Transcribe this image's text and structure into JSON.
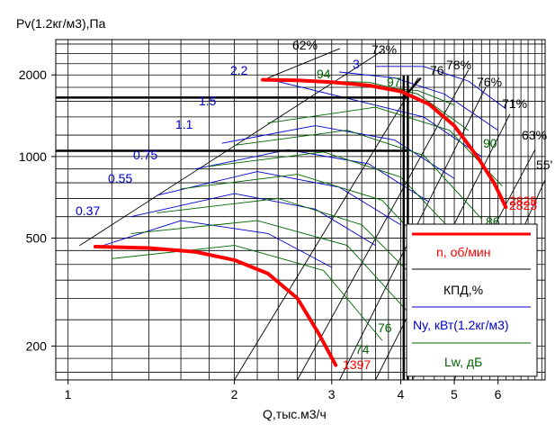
{
  "chart_data": {
    "type": "line",
    "ylabel": "Pv(1.2кг/м3),Па",
    "xlabel": "Q,тыс.м3/ч",
    "x_scale": "log",
    "y_scale": "log",
    "xlim": [
      0.95,
      7.3
    ],
    "ylim": [
      150,
      2700
    ],
    "x_ticks": [
      1,
      2,
      3,
      4,
      5,
      6
    ],
    "y_ticks": [
      200,
      500,
      1000,
      2000
    ],
    "grid": true,
    "legend_position": "bottom-right",
    "legend": [
      {
        "label": "n, об/мин",
        "color": "#ff0000"
      },
      {
        "label": "КПД,%",
        "color": "#000000"
      },
      {
        "label": "Ny, кВт(1.2кг/м3)",
        "color": "#0000cc"
      },
      {
        "label": "Lw, дБ",
        "color": "#006600"
      }
    ],
    "colors": {
      "speed": "#ff0000",
      "efficiency": "#000000",
      "power": "#0000cc",
      "noise": "#006600",
      "operating_point": "#000000"
    },
    "speed_curve": {
      "name": "n, об/мин",
      "upper_branch": {
        "x": [
          2.25,
          2.6,
          3.0,
          3.5,
          4.0,
          4.5,
          5.0,
          5.5,
          5.9,
          6.2
        ],
        "y": [
          1920,
          1910,
          1880,
          1830,
          1740,
          1560,
          1300,
          1000,
          800,
          650
        ]
      },
      "lower_branch": {
        "x": [
          1.12,
          1.4,
          1.7,
          2.0,
          2.3,
          2.6,
          2.85,
          3.05
        ],
        "y": [
          465,
          460,
          445,
          415,
          370,
          300,
          220,
          170
        ]
      },
      "labels": [
        {
          "text": "1397",
          "x": 3.1,
          "y": 158
        },
        {
          "text": "2825",
          "x": 6.5,
          "y": 620
        },
        {
          "text": "2825",
          "x": 6.45,
          "y": 645
        }
      ]
    },
    "efficiency_rays": [
      {
        "label": "62%",
        "x": [
          2.3,
          3.1
        ],
        "y": [
          1950,
          2500
        ]
      },
      {
        "label": "73%",
        "x": [
          1.05,
          3.7
        ],
        "y": [
          470,
          2450
        ]
      },
      {
        "label": "76",
        "x": [
          2.0,
          4.3
        ],
        "y": [
          150,
          1950
        ]
      },
      {
        "label": "78%",
        "x": [
          2.6,
          5.3
        ],
        "y": [
          150,
          2080
        ]
      },
      {
        "label": "76%",
        "x": [
          3.1,
          5.7
        ],
        "y": [
          150,
          1800
        ]
      },
      {
        "label": "71%",
        "x": [
          3.6,
          6.3
        ],
        "y": [
          150,
          1430
        ]
      },
      {
        "label": "63%",
        "x": [
          4.2,
          7.0
        ],
        "y": [
          150,
          1060
        ]
      },
      {
        "label": "55'",
        "x": [
          5.0,
          7.3
        ],
        "y": [
          150,
          820
        ]
      }
    ],
    "power_curves": [
      {
        "label": "0.37",
        "x": [
          1.12,
          1.6,
          2.3,
          3.0
        ],
        "y": [
          460,
          580,
          520,
          390
        ]
      },
      {
        "label": "0.55",
        "x": [
          1.3,
          2.0,
          2.8,
          3.6
        ],
        "y": [
          600,
          730,
          640,
          470
        ]
      },
      {
        "label": "0.75",
        "x": [
          1.45,
          2.2,
          3.1,
          4.0
        ],
        "y": [
          720,
          880,
          770,
          560
        ]
      },
      {
        "label": "1.1",
        "x": [
          1.7,
          2.5,
          3.5,
          4.5
        ],
        "y": [
          900,
          1060,
          940,
          680
        ]
      },
      {
        "label": "1.5",
        "x": [
          1.9,
          2.8,
          3.9,
          5.0
        ],
        "y": [
          1120,
          1300,
          1150,
          830
        ]
      },
      {
        "label": "2.2",
        "x": [
          2.3,
          3.2,
          4.4,
          5.6
        ],
        "y": [
          1930,
          1640,
          1400,
          1000
        ]
      },
      {
        "label": "3",
        "x": [
          3.1,
          3.9,
          4.8,
          6.0
        ],
        "y": [
          2050,
          1950,
          1700,
          1250
        ]
      },
      {
        "label": "",
        "x": [
          3.6,
          4.4,
          5.3,
          6.2
        ],
        "y": [
          2150,
          2150,
          1900,
          1500
        ]
      }
    ],
    "noise_curves": [
      {
        "label": "74",
        "x": [
          1.2,
          2.0,
          2.9,
          3.7
        ],
        "y": [
          420,
          470,
          380,
          210
        ]
      },
      {
        "label": "76",
        "x": [
          1.3,
          2.2,
          3.2,
          4.1
        ],
        "y": [
          520,
          580,
          470,
          270
        ]
      },
      {
        "label": "",
        "x": [
          1.45,
          2.4,
          3.4,
          4.4
        ],
        "y": [
          620,
          700,
          560,
          330
        ]
      },
      {
        "label": "",
        "x": [
          1.6,
          2.6,
          3.7,
          4.7
        ],
        "y": [
          760,
          860,
          690,
          410
        ]
      },
      {
        "label": "",
        "x": [
          1.8,
          2.9,
          4.0,
          5.1
        ],
        "y": [
          920,
          1040,
          840,
          500
        ]
      },
      {
        "label": "86",
        "x": [
          2.0,
          3.2,
          4.4,
          5.6
        ],
        "y": [
          1100,
          1250,
          1010,
          590
        ]
      },
      {
        "label": "90",
        "x": [
          2.3,
          3.6,
          4.9,
          6.1
        ],
        "y": [
          1330,
          1520,
          1250,
          780
        ]
      },
      {
        "label": "94",
        "x": [
          2.7,
          3.5,
          4.3,
          5.3
        ],
        "y": [
          1900,
          1880,
          1700,
          1250
        ]
      },
      {
        "label": "97",
        "x": [
          3.7,
          4.3,
          5.0
        ],
        "y": [
          1800,
          1750,
          1550
        ]
      }
    ],
    "operating_lines": {
      "horizontal": [
        {
          "y": 1650,
          "x_end": 4.1
        },
        {
          "y": 1050,
          "x_end": 4.1
        }
      ],
      "vertical": [
        {
          "x": 4.05
        },
        {
          "x": 4.12
        }
      ]
    }
  }
}
